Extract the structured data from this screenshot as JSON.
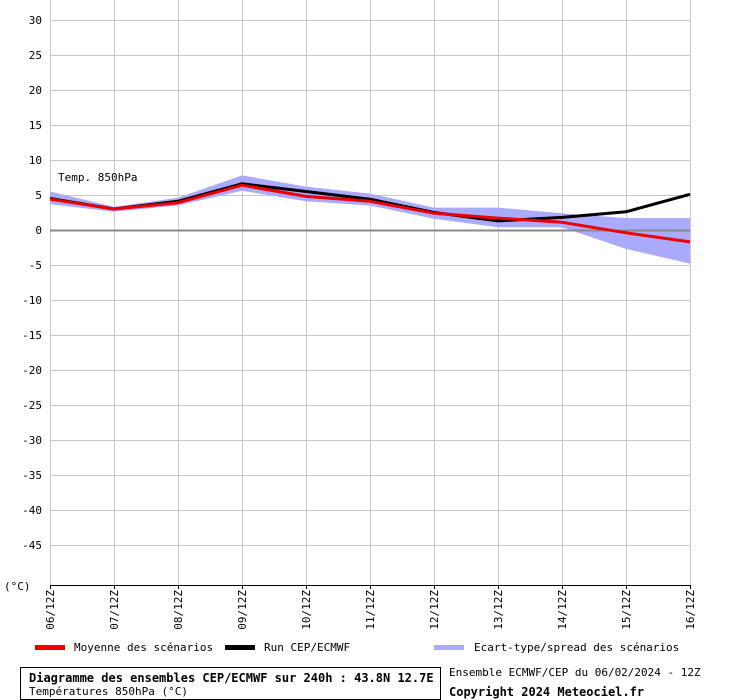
{
  "chart_data": {
    "type": "line",
    "panel_label": "Temp. 850hPa",
    "unit_label": "(°C)",
    "x": [
      "06/12Z",
      "07/12Z",
      "08/12Z",
      "09/12Z",
      "10/12Z",
      "11/12Z",
      "12/12Z",
      "13/12Z",
      "14/12Z",
      "15/12Z",
      "16/12Z"
    ],
    "yticks": [
      30,
      25,
      20,
      15,
      10,
      5,
      0,
      -5,
      -10,
      -15,
      -20,
      -25,
      -30,
      -35,
      -40,
      -45
    ],
    "ylim": [
      -50,
      32
    ],
    "grid": true,
    "series": [
      {
        "name": "Moyenne des scénarios",
        "color": "#ee0000",
        "values": [
          4.4,
          3.0,
          3.9,
          6.4,
          4.8,
          4.1,
          2.4,
          1.7,
          1.1,
          -0.4,
          -1.7
        ]
      },
      {
        "name": "Run CEP/ECMWF",
        "color": "#000000",
        "values": [
          4.5,
          3.0,
          4.1,
          6.6,
          5.5,
          4.4,
          2.5,
          1.3,
          1.8,
          2.6,
          5.1
        ]
      }
    ],
    "spread": {
      "name": "Ecart-type/spread des scénarios",
      "color": "#aaaaff",
      "upper": [
        5.5,
        3.3,
        4.6,
        7.8,
        6.2,
        5.2,
        3.2,
        3.2,
        2.4,
        1.7,
        1.7
      ],
      "lower": [
        3.7,
        2.6,
        3.5,
        5.6,
        4.1,
        3.5,
        1.6,
        0.4,
        0.4,
        -2.7,
        -4.8
      ]
    },
    "legend": [
      {
        "label": "Moyenne des scénarios",
        "color": "#ee0000"
      },
      {
        "label": "Run CEP/ECMWF",
        "color": "#000000"
      },
      {
        "label": "Ecart-type/spread des scénarios",
        "color": "#aaaaff"
      }
    ]
  },
  "footer": {
    "title": "Diagramme des ensembles CEP/ECMWF sur 240h : 43.8N 12.7E",
    "subtitle": "Températures 850hPa (°C)",
    "run_info": "Ensemble ECMWF/CEP du 06/02/2024 - 12Z",
    "copyright": "Copyright 2024 Meteociel.fr"
  }
}
